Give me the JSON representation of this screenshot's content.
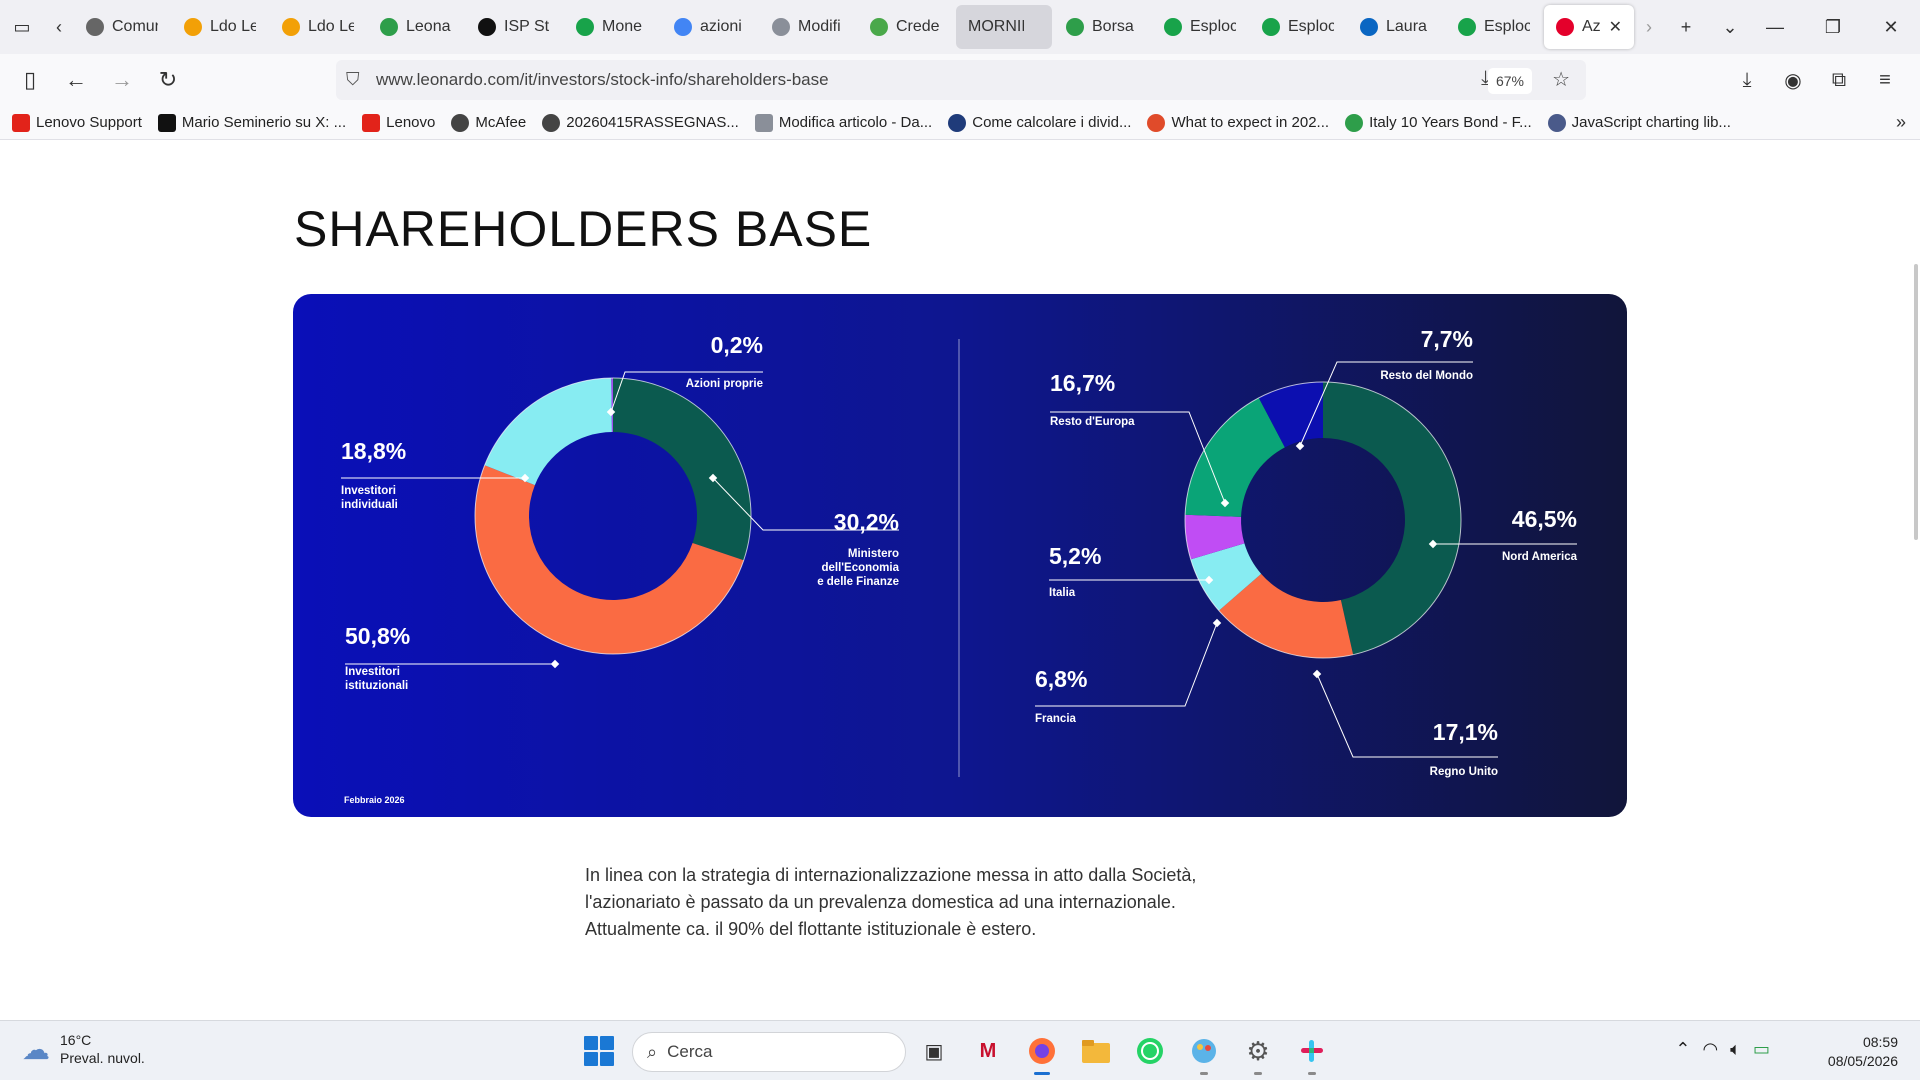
{
  "browser": {
    "tabs": [
      {
        "title": "Comuni",
        "fav": "mail",
        "color": "#666666"
      },
      {
        "title": "Ldo Le",
        "fav": "leonardo",
        "color": "#f2a007"
      },
      {
        "title": "Ldo Le",
        "fav": "leonardo",
        "color": "#f2a007"
      },
      {
        "title": "Leona",
        "fav": "chart",
        "color": "#2e9e4a"
      },
      {
        "title": "ISP St",
        "fav": "isp",
        "color": "#111111"
      },
      {
        "title": "Mone",
        "fav": "M",
        "color": "#18a34a"
      },
      {
        "title": "azioni",
        "fav": "G",
        "color": "#4285f4"
      },
      {
        "title": "Modifi",
        "fav": "N",
        "color": "#8a8f99"
      },
      {
        "title": "Crede",
        "fav": "C",
        "color": "#4aa84a"
      },
      {
        "title": "MORNING",
        "fav": "",
        "color": "#d6d6dc"
      },
      {
        "title": "Borsa",
        "fav": "chart",
        "color": "#2e9e4a"
      },
      {
        "title": "Esploc",
        "fav": "M",
        "color": "#18a34a"
      },
      {
        "title": "Esploc",
        "fav": "M",
        "color": "#18a34a"
      },
      {
        "title": "Laura",
        "fav": "in",
        "color": "#0a66c2"
      },
      {
        "title": "Esploc",
        "fav": "M",
        "color": "#18a34a"
      },
      {
        "title": "Azi",
        "fav": "leo",
        "color": "#e4002b"
      }
    ],
    "url": "www.leonardo.com/it/investors/stock-info/shareholders-base",
    "zoom": "67%",
    "bookmarks": [
      {
        "label": "Lenovo Support",
        "ic": "L",
        "color": "#e2231a"
      },
      {
        "label": "Mario Seminerio su X: ...",
        "ic": "X",
        "color": "#111111"
      },
      {
        "label": "Lenovo",
        "ic": "L",
        "color": "#e2231a"
      },
      {
        "label": "McAfee",
        "ic": "globe",
        "color": "#444444"
      },
      {
        "label": "20260415RASSEGNAS...",
        "ic": "globe",
        "color": "#444444"
      },
      {
        "label": "Modifica articolo - Da...",
        "ic": "N",
        "color": "#8a8f99"
      },
      {
        "label": "Come calcolare i divid...",
        "ic": "o",
        "color": "#1f3b7a"
      },
      {
        "label": "What to expect in 202...",
        "ic": "o",
        "color": "#e04b2a"
      },
      {
        "label": "Italy 10 Years Bond - F...",
        "ic": "o",
        "color": "#2e9e4a"
      },
      {
        "label": "JavaScript charting lib...",
        "ic": "o",
        "color": "#4a5a8a"
      }
    ]
  },
  "page": {
    "title": "SHAREHOLDERS BASE",
    "date_note": "Febbraio 2026",
    "body": [
      "In linea con la strategia di internazionalizzazione messa in atto dalla Società,",
      "l'azionariato è passato da un prevalenza domestica ad una internazionale.",
      "Attualmente ca. il 90% del flottante istituzionale è estero."
    ]
  },
  "chart_data": [
    {
      "type": "pie",
      "donut": true,
      "values": [
        30.2,
        50.8,
        18.8,
        0.2
      ],
      "value_labels": [
        "30,2%",
        "50,8%",
        "18,8%",
        "0,2%"
      ],
      "labels": [
        [
          "Ministero",
          "dell'Economia",
          "e delle Finanze"
        ],
        [
          "Investitori",
          "istituzionali"
        ],
        [
          "Investitori",
          "individuali"
        ],
        [
          "Azioni proprie"
        ]
      ],
      "colors": [
        "#0b5a4f",
        "#fa6b43",
        "#87ecf2",
        "#a24df0"
      ]
    },
    {
      "type": "pie",
      "donut": true,
      "values": [
        46.5,
        17.1,
        6.8,
        5.2,
        16.7,
        7.7
      ],
      "value_labels": [
        "46,5%",
        "17,1%",
        "6,8%",
        "5,2%",
        "16,7%",
        "7,7%"
      ],
      "labels": [
        [
          "Nord America"
        ],
        [
          "Regno Unito"
        ],
        [
          "Francia"
        ],
        [
          "Italia"
        ],
        [
          "Resto d'Europa"
        ],
        [
          "Resto del Mondo"
        ]
      ],
      "colors": [
        "#0b5a4f",
        "#fa6b43",
        "#87ecf2",
        "#c04df4",
        "#0aa477",
        "#0c0fb0"
      ]
    }
  ],
  "taskbar": {
    "temperature": "16°C",
    "weather": "Preval. nuvol.",
    "search": "Cerca",
    "time": "08:59",
    "date": "08/05/2026"
  }
}
